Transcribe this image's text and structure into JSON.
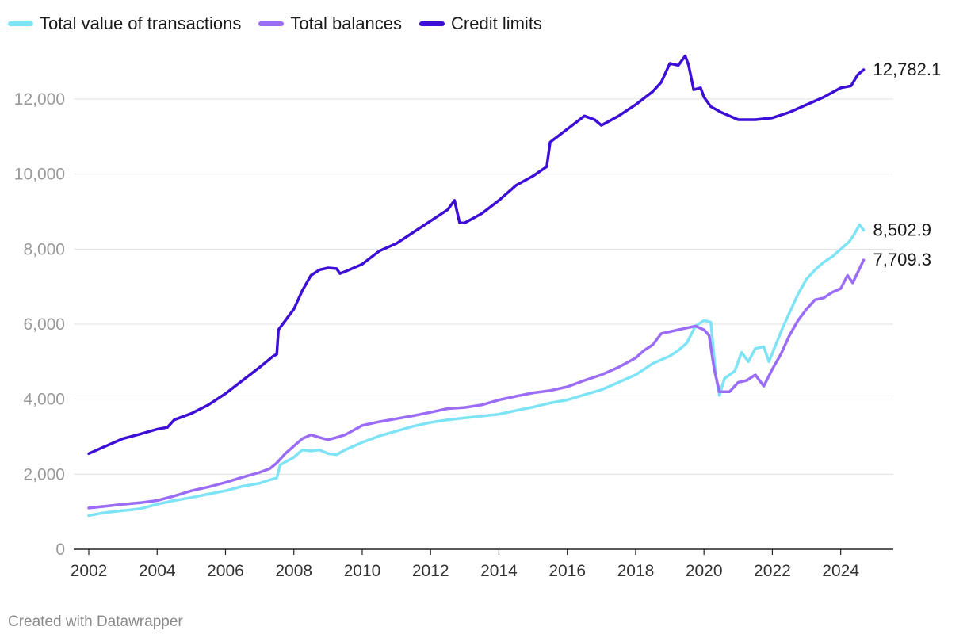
{
  "chart_data": {
    "type": "line",
    "title": "",
    "xlabel": "",
    "ylabel": "",
    "xlim": [
      2002,
      2024.75
    ],
    "ylim": [
      0,
      13000
    ],
    "x_ticks": [
      "2002",
      "2004",
      "2006",
      "2008",
      "2010",
      "2012",
      "2014",
      "2016",
      "2018",
      "2020",
      "2022",
      "2024"
    ],
    "y_ticks": [
      0,
      2000,
      4000,
      6000,
      8000,
      10000,
      12000
    ],
    "y_tick_labels": [
      "0",
      "2,000",
      "4,000",
      "6,000",
      "8,000",
      "10,000",
      "12,000"
    ],
    "legend_position": "top-left",
    "series": [
      {
        "name": "Total value of transactions",
        "color": "#7ee3f5",
        "end_label": "8,502.9",
        "points": [
          [
            2002,
            900
          ],
          [
            2002.5,
            980
          ],
          [
            2003,
            1030
          ],
          [
            2003.5,
            1080
          ],
          [
            2004,
            1200
          ],
          [
            2004.5,
            1300
          ],
          [
            2005,
            1380
          ],
          [
            2005.5,
            1470
          ],
          [
            2006,
            1560
          ],
          [
            2006.5,
            1680
          ],
          [
            2007,
            1760
          ],
          [
            2007.3,
            1850
          ],
          [
            2007.5,
            1900
          ],
          [
            2007.6,
            2250
          ],
          [
            2008,
            2450
          ],
          [
            2008.25,
            2650
          ],
          [
            2008.5,
            2620
          ],
          [
            2008.75,
            2650
          ],
          [
            2009,
            2550
          ],
          [
            2009.25,
            2520
          ],
          [
            2009.5,
            2650
          ],
          [
            2010,
            2850
          ],
          [
            2010.5,
            3020
          ],
          [
            2011,
            3150
          ],
          [
            2011.5,
            3280
          ],
          [
            2012,
            3380
          ],
          [
            2012.5,
            3450
          ],
          [
            2013,
            3500
          ],
          [
            2013.5,
            3550
          ],
          [
            2014,
            3600
          ],
          [
            2014.5,
            3700
          ],
          [
            2015,
            3790
          ],
          [
            2015.5,
            3900
          ],
          [
            2016,
            3980
          ],
          [
            2016.5,
            4120
          ],
          [
            2017,
            4250
          ],
          [
            2017.5,
            4450
          ],
          [
            2018,
            4650
          ],
          [
            2018.25,
            4800
          ],
          [
            2018.5,
            4950
          ],
          [
            2019,
            5150
          ],
          [
            2019.25,
            5300
          ],
          [
            2019.5,
            5500
          ],
          [
            2019.75,
            5950
          ],
          [
            2020,
            6100
          ],
          [
            2020.2,
            6050
          ],
          [
            2020.35,
            4600
          ],
          [
            2020.45,
            4100
          ],
          [
            2020.6,
            4550
          ],
          [
            2020.9,
            4750
          ],
          [
            2021.1,
            5250
          ],
          [
            2021.3,
            5000
          ],
          [
            2021.5,
            5350
          ],
          [
            2021.75,
            5400
          ],
          [
            2021.9,
            5000
          ],
          [
            2022.1,
            5450
          ],
          [
            2022.3,
            5900
          ],
          [
            2022.5,
            6300
          ],
          [
            2022.75,
            6800
          ],
          [
            2023,
            7200
          ],
          [
            2023.25,
            7450
          ],
          [
            2023.5,
            7650
          ],
          [
            2023.75,
            7800
          ],
          [
            2024,
            8000
          ],
          [
            2024.25,
            8200
          ],
          [
            2024.4,
            8400
          ],
          [
            2024.55,
            8650
          ],
          [
            2024.67,
            8502.9
          ]
        ]
      },
      {
        "name": "Total balances",
        "color": "#9b6cf5",
        "end_label": "7,709.3",
        "points": [
          [
            2002,
            1100
          ],
          [
            2002.5,
            1150
          ],
          [
            2003,
            1200
          ],
          [
            2003.5,
            1240
          ],
          [
            2004,
            1300
          ],
          [
            2004.5,
            1420
          ],
          [
            2005,
            1560
          ],
          [
            2005.5,
            1660
          ],
          [
            2006,
            1780
          ],
          [
            2006.5,
            1920
          ],
          [
            2007,
            2050
          ],
          [
            2007.3,
            2150
          ],
          [
            2007.5,
            2300
          ],
          [
            2007.75,
            2550
          ],
          [
            2008,
            2750
          ],
          [
            2008.25,
            2950
          ],
          [
            2008.5,
            3050
          ],
          [
            2008.75,
            2980
          ],
          [
            2009,
            2920
          ],
          [
            2009.25,
            2980
          ],
          [
            2009.5,
            3050
          ],
          [
            2010,
            3300
          ],
          [
            2010.5,
            3400
          ],
          [
            2011,
            3480
          ],
          [
            2011.5,
            3560
          ],
          [
            2012,
            3650
          ],
          [
            2012.5,
            3750
          ],
          [
            2013,
            3780
          ],
          [
            2013.5,
            3850
          ],
          [
            2014,
            3980
          ],
          [
            2014.5,
            4080
          ],
          [
            2015,
            4170
          ],
          [
            2015.5,
            4230
          ],
          [
            2016,
            4330
          ],
          [
            2016.5,
            4500
          ],
          [
            2017,
            4650
          ],
          [
            2017.5,
            4850
          ],
          [
            2018,
            5100
          ],
          [
            2018.25,
            5300
          ],
          [
            2018.5,
            5450
          ],
          [
            2018.75,
            5750
          ],
          [
            2019,
            5800
          ],
          [
            2019.25,
            5850
          ],
          [
            2019.5,
            5900
          ],
          [
            2019.75,
            5950
          ],
          [
            2020,
            5850
          ],
          [
            2020.15,
            5700
          ],
          [
            2020.3,
            4800
          ],
          [
            2020.45,
            4200
          ],
          [
            2020.75,
            4200
          ],
          [
            2021,
            4450
          ],
          [
            2021.25,
            4500
          ],
          [
            2021.5,
            4650
          ],
          [
            2021.75,
            4350
          ],
          [
            2022,
            4800
          ],
          [
            2022.25,
            5200
          ],
          [
            2022.5,
            5700
          ],
          [
            2022.75,
            6100
          ],
          [
            2023,
            6400
          ],
          [
            2023.25,
            6650
          ],
          [
            2023.5,
            6700
          ],
          [
            2023.75,
            6850
          ],
          [
            2024,
            6950
          ],
          [
            2024.2,
            7300
          ],
          [
            2024.35,
            7100
          ],
          [
            2024.67,
            7709.3
          ]
        ]
      },
      {
        "name": "Credit limits",
        "color": "#3d0fd6",
        "end_label": "12,782.1",
        "points": [
          [
            2002,
            2550
          ],
          [
            2002.5,
            2750
          ],
          [
            2003,
            2950
          ],
          [
            2003.5,
            3070
          ],
          [
            2004,
            3200
          ],
          [
            2004.3,
            3250
          ],
          [
            2004.5,
            3450
          ],
          [
            2005,
            3620
          ],
          [
            2005.5,
            3850
          ],
          [
            2006,
            4150
          ],
          [
            2006.5,
            4500
          ],
          [
            2007,
            4850
          ],
          [
            2007.4,
            5150
          ],
          [
            2007.5,
            5200
          ],
          [
            2007.55,
            5850
          ],
          [
            2008,
            6400
          ],
          [
            2008.25,
            6900
          ],
          [
            2008.5,
            7300
          ],
          [
            2008.75,
            7450
          ],
          [
            2009,
            7500
          ],
          [
            2009.25,
            7480
          ],
          [
            2009.35,
            7350
          ],
          [
            2009.5,
            7400
          ],
          [
            2010,
            7600
          ],
          [
            2010.5,
            7950
          ],
          [
            2011,
            8150
          ],
          [
            2011.5,
            8450
          ],
          [
            2012,
            8750
          ],
          [
            2012.5,
            9050
          ],
          [
            2012.7,
            9300
          ],
          [
            2012.85,
            8700
          ],
          [
            2013,
            8700
          ],
          [
            2013.5,
            8950
          ],
          [
            2014,
            9300
          ],
          [
            2014.5,
            9700
          ],
          [
            2015,
            9950
          ],
          [
            2015.4,
            10200
          ],
          [
            2015.5,
            10850
          ],
          [
            2016,
            11200
          ],
          [
            2016.5,
            11550
          ],
          [
            2016.8,
            11450
          ],
          [
            2017,
            11300
          ],
          [
            2017.5,
            11550
          ],
          [
            2018,
            11850
          ],
          [
            2018.5,
            12200
          ],
          [
            2018.75,
            12450
          ],
          [
            2019,
            12950
          ],
          [
            2019.25,
            12900
          ],
          [
            2019.45,
            13150
          ],
          [
            2019.55,
            12900
          ],
          [
            2019.7,
            12250
          ],
          [
            2019.9,
            12300
          ],
          [
            2020,
            12050
          ],
          [
            2020.2,
            11800
          ],
          [
            2020.5,
            11650
          ],
          [
            2021,
            11450
          ],
          [
            2021.5,
            11450
          ],
          [
            2022,
            11500
          ],
          [
            2022.5,
            11650
          ],
          [
            2023,
            11850
          ],
          [
            2023.5,
            12050
          ],
          [
            2024,
            12300
          ],
          [
            2024.3,
            12350
          ],
          [
            2024.5,
            12650
          ],
          [
            2024.67,
            12782.1
          ]
        ]
      }
    ]
  },
  "footer": {
    "credit": "Created with Datawrapper"
  }
}
